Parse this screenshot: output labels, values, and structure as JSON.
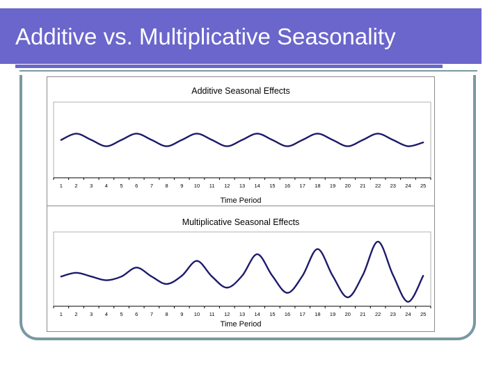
{
  "slide": {
    "title": "Additive vs. Multiplicative Seasonality"
  },
  "colors": {
    "title_bar": "#6b66cc",
    "frame": "#7a98a2",
    "line": "#1c1a6b"
  },
  "chart_data": [
    {
      "type": "line",
      "title": "Additive Seasonal Effects",
      "xlabel": "Time Period",
      "ylabel": "",
      "x": [
        1,
        2,
        3,
        4,
        5,
        6,
        7,
        8,
        9,
        10,
        11,
        12,
        13,
        14,
        15,
        16,
        17,
        18,
        19,
        20,
        21,
        22,
        23,
        24,
        25
      ],
      "series": [
        {
          "values": [
            50,
            55,
            50,
            45,
            50,
            55,
            50,
            45,
            50,
            55,
            50,
            45,
            50,
            55,
            50,
            45,
            50,
            55,
            50,
            45,
            50,
            55,
            50,
            45,
            48
          ]
        }
      ],
      "ylim": [
        20,
        80
      ],
      "grid": false,
      "smooth": true
    },
    {
      "type": "line",
      "title": "Multiplicative Seasonal Effects",
      "xlabel": "Time Period",
      "ylabel": "",
      "x": [
        1,
        2,
        3,
        4,
        5,
        6,
        7,
        8,
        9,
        10,
        11,
        12,
        13,
        14,
        15,
        16,
        17,
        18,
        19,
        20,
        21,
        22,
        23,
        24,
        25
      ],
      "series": [
        {
          "values": [
            50,
            55,
            50,
            45,
            50,
            62,
            50,
            40,
            51,
            71,
            50,
            35,
            51,
            80,
            51,
            28,
            51,
            87,
            51,
            22,
            52,
            97,
            52,
            16,
            51
          ]
        }
      ],
      "ylim": [
        10,
        110
      ],
      "grid": false,
      "smooth": true
    }
  ]
}
